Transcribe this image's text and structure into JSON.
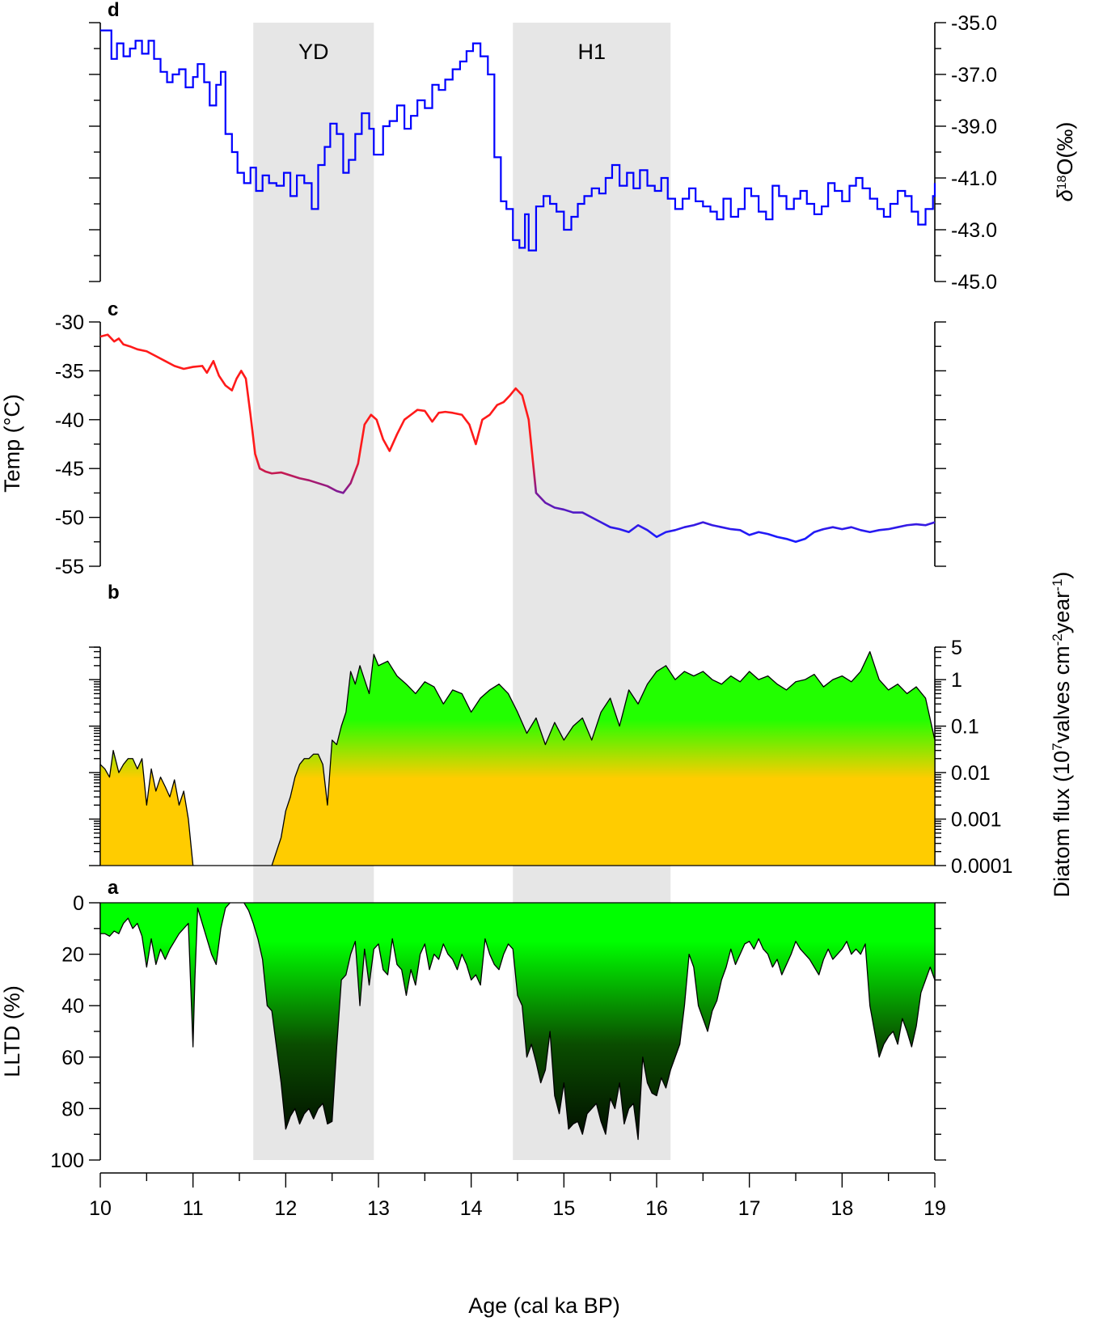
{
  "figure": {
    "x_axis": {
      "label": "Age (cal ka BP)",
      "range": [
        10,
        19
      ],
      "ticks": [
        10,
        11,
        12,
        13,
        14,
        15,
        16,
        17,
        18,
        19
      ],
      "tick_labels": [
        "10",
        "11",
        "12",
        "13",
        "14",
        "15",
        "16",
        "17",
        "18",
        "19"
      ]
    },
    "events": [
      {
        "label": "YD",
        "start": 11.65,
        "end": 12.95
      },
      {
        "label": "H1",
        "start": 14.45,
        "end": 16.15
      }
    ],
    "colors": {
      "shade": "#e6e6e6",
      "d18o_line": "#0000ff",
      "temp_warm": "#ff1a1a",
      "temp_mid": "#7a1a9a",
      "temp_cold": "#1a1aff",
      "flux_high": "#22ff00",
      "flux_low": "#ffcc00",
      "lltd_top": "#00ff00",
      "lltd_bottom": "#000000"
    }
  },
  "chart_data": [
    {
      "panel": "d",
      "type": "line",
      "step": true,
      "ylabel_prefix": "δ",
      "ylabel_sup": "18",
      "ylabel_suffix": "O(‰)",
      "y_axis_side": "right",
      "ylim": [
        -45,
        -35
      ],
      "y_ticks": [
        -35,
        -37,
        -39,
        -41,
        -43,
        -45
      ],
      "y_tick_labels": [
        "-35.0",
        "-37.0",
        "-39.0",
        "-41.0",
        "-43.0",
        "-45.0"
      ],
      "x": [
        10.0,
        10.12,
        10.18,
        10.25,
        10.32,
        10.38,
        10.45,
        10.52,
        10.58,
        10.65,
        10.72,
        10.78,
        10.85,
        10.92,
        11.0,
        11.05,
        11.12,
        11.18,
        11.25,
        11.3,
        11.35,
        11.42,
        11.48,
        11.55,
        11.62,
        11.68,
        11.75,
        11.82,
        11.9,
        11.98,
        12.05,
        12.12,
        12.2,
        12.28,
        12.35,
        12.42,
        12.48,
        12.55,
        12.62,
        12.68,
        12.75,
        12.82,
        12.9,
        12.95,
        13.05,
        13.12,
        13.2,
        13.28,
        13.35,
        13.42,
        13.5,
        13.58,
        13.65,
        13.72,
        13.8,
        13.88,
        13.95,
        14.02,
        14.1,
        14.18,
        14.25,
        14.32,
        14.38,
        14.45,
        14.52,
        14.58,
        14.62,
        14.7,
        14.78,
        14.85,
        14.92,
        15.0,
        15.08,
        15.15,
        15.22,
        15.3,
        15.38,
        15.45,
        15.52,
        15.6,
        15.68,
        15.75,
        15.82,
        15.9,
        15.98,
        16.05,
        16.12,
        16.2,
        16.28,
        16.35,
        16.42,
        16.5,
        16.58,
        16.65,
        16.72,
        16.8,
        16.88,
        16.95,
        17.02,
        17.1,
        17.18,
        17.25,
        17.32,
        17.4,
        17.48,
        17.55,
        17.62,
        17.7,
        17.78,
        17.85,
        17.92,
        18.0,
        18.08,
        18.15,
        18.22,
        18.3,
        18.38,
        18.45,
        18.52,
        18.6,
        18.68,
        18.75,
        18.82,
        18.9,
        18.98,
        19.0
      ],
      "y": [
        -35.3,
        -36.4,
        -35.8,
        -36.3,
        -36.0,
        -35.7,
        -36.2,
        -35.7,
        -36.4,
        -36.9,
        -37.3,
        -37.0,
        -36.8,
        -37.5,
        -37.1,
        -36.6,
        -37.3,
        -38.2,
        -37.4,
        -36.9,
        -39.3,
        -40.0,
        -40.8,
        -41.2,
        -40.6,
        -41.5,
        -40.9,
        -41.2,
        -41.3,
        -40.8,
        -41.7,
        -40.9,
        -41.2,
        -42.2,
        -40.5,
        -39.8,
        -38.9,
        -39.3,
        -40.8,
        -40.3,
        -39.3,
        -38.5,
        -39.1,
        -40.1,
        -39.0,
        -38.8,
        -38.2,
        -39.1,
        -38.6,
        -38.0,
        -38.3,
        -37.4,
        -37.6,
        -37.2,
        -36.8,
        -36.5,
        -36.1,
        -35.8,
        -36.3,
        -37.0,
        -40.2,
        -41.9,
        -42.2,
        -43.4,
        -43.7,
        -42.4,
        -43.8,
        -42.1,
        -41.7,
        -42.0,
        -42.3,
        -43.0,
        -42.5,
        -42.0,
        -41.7,
        -41.4,
        -41.6,
        -41.0,
        -40.5,
        -41.3,
        -40.8,
        -41.4,
        -40.7,
        -41.3,
        -41.5,
        -41.0,
        -41.8,
        -42.2,
        -41.8,
        -41.4,
        -41.9,
        -42.1,
        -42.3,
        -42.6,
        -41.8,
        -42.5,
        -42.2,
        -41.4,
        -41.7,
        -42.3,
        -42.6,
        -41.3,
        -41.7,
        -42.2,
        -41.8,
        -41.5,
        -42.0,
        -42.4,
        -42.1,
        -41.2,
        -41.5,
        -41.9,
        -41.3,
        -41.0,
        -41.4,
        -41.8,
        -42.2,
        -42.5,
        -42.0,
        -41.5,
        -41.7,
        -42.3,
        -42.8,
        -42.2,
        -41.7,
        -41.2
      ]
    },
    {
      "panel": "c",
      "type": "line",
      "ylabel": "Temp (°C)",
      "y_axis_side": "left",
      "ylim": [
        -55,
        -30
      ],
      "y_ticks": [
        -30,
        -35,
        -40,
        -45,
        -50,
        -55
      ],
      "y_tick_labels": [
        "-30",
        "-35",
        "-40",
        "-45",
        "-50",
        "-55"
      ],
      "x": [
        10.0,
        10.08,
        10.15,
        10.2,
        10.25,
        10.32,
        10.4,
        10.5,
        10.6,
        10.7,
        10.8,
        10.9,
        11.0,
        11.1,
        11.15,
        11.22,
        11.28,
        11.35,
        11.42,
        11.47,
        11.52,
        11.57,
        11.62,
        11.67,
        11.72,
        11.78,
        11.85,
        11.95,
        12.05,
        12.15,
        12.25,
        12.35,
        12.45,
        12.55,
        12.62,
        12.7,
        12.78,
        12.85,
        12.92,
        12.98,
        13.05,
        13.12,
        13.2,
        13.28,
        13.35,
        13.42,
        13.5,
        13.58,
        13.65,
        13.72,
        13.8,
        13.9,
        13.98,
        14.05,
        14.12,
        14.2,
        14.28,
        14.35,
        14.42,
        14.48,
        14.55,
        14.62,
        14.7,
        14.8,
        14.9,
        15.0,
        15.1,
        15.2,
        15.3,
        15.4,
        15.5,
        15.6,
        15.7,
        15.8,
        15.9,
        16.0,
        16.1,
        16.2,
        16.3,
        16.4,
        16.5,
        16.6,
        16.7,
        16.8,
        16.9,
        17.0,
        17.1,
        17.2,
        17.3,
        17.4,
        17.5,
        17.6,
        17.7,
        17.8,
        17.9,
        18.0,
        18.1,
        18.2,
        18.3,
        18.4,
        18.5,
        18.6,
        18.7,
        18.8,
        18.9,
        19.0
      ],
      "y": [
        -31.5,
        -31.3,
        -32.0,
        -31.7,
        -32.3,
        -32.5,
        -32.8,
        -33.0,
        -33.5,
        -34.0,
        -34.5,
        -34.8,
        -34.6,
        -34.5,
        -35.2,
        -34.0,
        -35.5,
        -36.5,
        -37.0,
        -35.8,
        -35.0,
        -35.8,
        -39.5,
        -43.5,
        -45.0,
        -45.3,
        -45.5,
        -45.4,
        -45.7,
        -46.0,
        -46.2,
        -46.5,
        -46.8,
        -47.3,
        -47.5,
        -46.5,
        -44.5,
        -40.5,
        -39.5,
        -40.0,
        -42.0,
        -43.2,
        -41.5,
        -40.0,
        -39.5,
        -39.0,
        -39.1,
        -40.2,
        -39.3,
        -39.2,
        -39.3,
        -39.5,
        -40.5,
        -42.5,
        -40.0,
        -39.5,
        -38.5,
        -38.2,
        -37.5,
        -36.8,
        -37.5,
        -40.0,
        -47.5,
        -48.5,
        -49.0,
        -49.2,
        -49.5,
        -49.5,
        -50.0,
        -50.5,
        -51.0,
        -51.2,
        -51.5,
        -50.8,
        -51.3,
        -52.0,
        -51.5,
        -51.3,
        -51.0,
        -50.8,
        -50.5,
        -50.8,
        -51.0,
        -51.2,
        -51.3,
        -51.8,
        -51.5,
        -51.7,
        -52.0,
        -52.2,
        -52.5,
        -52.2,
        -51.5,
        -51.2,
        -51.0,
        -51.2,
        -51.0,
        -51.3,
        -51.5,
        -51.3,
        -51.2,
        -51.0,
        -50.8,
        -50.7,
        -50.8,
        -50.5
      ]
    },
    {
      "panel": "b",
      "type": "area",
      "ylabel_prefix": "Diatom flux (10",
      "ylabel_sup": "7",
      "ylabel_mid": "valves cm",
      "ylabel_sup2": "-2",
      "ylabel_mid2": "year",
      "ylabel_sup3": "-1",
      "ylabel_end": ")",
      "y_axis_side": "right",
      "scale": "log",
      "ylim": [
        0.0001,
        5
      ],
      "y_ticks": [
        0.0001,
        0.001,
        0.01,
        0.1,
        1,
        5
      ],
      "y_tick_labels": [
        "0.0001",
        "0.001",
        "0.01",
        "0.1",
        "1",
        "5"
      ],
      "x": [
        10.0,
        10.05,
        10.1,
        10.14,
        10.2,
        10.25,
        10.3,
        10.35,
        10.4,
        10.45,
        10.5,
        10.55,
        10.6,
        10.65,
        10.7,
        10.75,
        10.8,
        10.85,
        10.9,
        10.95,
        11.0,
        11.05,
        11.85,
        11.9,
        11.95,
        12.0,
        12.05,
        12.1,
        12.15,
        12.2,
        12.25,
        12.3,
        12.35,
        12.4,
        12.45,
        12.5,
        12.55,
        12.6,
        12.65,
        12.7,
        12.75,
        12.8,
        12.85,
        12.9,
        12.95,
        13.0,
        13.1,
        13.2,
        13.3,
        13.4,
        13.5,
        13.6,
        13.7,
        13.8,
        13.9,
        14.0,
        14.1,
        14.2,
        14.3,
        14.4,
        14.5,
        14.6,
        14.7,
        14.8,
        14.9,
        15.0,
        15.1,
        15.2,
        15.3,
        15.4,
        15.5,
        15.6,
        15.7,
        15.8,
        15.9,
        16.0,
        16.1,
        16.2,
        16.3,
        16.4,
        16.5,
        16.6,
        16.7,
        16.8,
        16.9,
        17.0,
        17.1,
        17.2,
        17.3,
        17.4,
        17.5,
        17.6,
        17.7,
        17.8,
        17.9,
        18.0,
        18.1,
        18.2,
        18.3,
        18.4,
        18.5,
        18.6,
        18.7,
        18.8,
        18.9,
        19.0
      ],
      "y": [
        0.015,
        0.012,
        0.008,
        0.03,
        0.01,
        0.015,
        0.02,
        0.02,
        0.012,
        0.02,
        0.002,
        0.012,
        0.004,
        0.008,
        0.005,
        0.003,
        0.007,
        0.002,
        0.004,
        0.001,
        0.0001,
        0.0001,
        0.0001,
        0.0002,
        0.0004,
        0.0015,
        0.003,
        0.008,
        0.015,
        0.02,
        0.02,
        0.025,
        0.025,
        0.015,
        0.002,
        0.05,
        0.04,
        0.1,
        0.2,
        1.5,
        0.8,
        2.0,
        1.0,
        0.5,
        3.5,
        2.0,
        2.5,
        1.2,
        0.8,
        0.5,
        0.9,
        0.7,
        0.3,
        0.6,
        0.5,
        0.2,
        0.4,
        0.6,
        0.8,
        0.5,
        0.2,
        0.07,
        0.15,
        0.04,
        0.12,
        0.05,
        0.1,
        0.15,
        0.05,
        0.2,
        0.4,
        0.1,
        0.6,
        0.3,
        0.8,
        1.5,
        2.0,
        1.0,
        1.5,
        1.2,
        1.5,
        1.0,
        0.8,
        1.2,
        0.9,
        1.5,
        1.0,
        1.2,
        0.8,
        0.6,
        0.9,
        1.0,
        1.3,
        0.7,
        1.0,
        1.2,
        0.9,
        1.5,
        4.0,
        1.0,
        0.6,
        0.8,
        0.5,
        0.7,
        0.4,
        0.05
      ]
    },
    {
      "panel": "a",
      "type": "area",
      "ylabel": "LLTD (%)",
      "y_axis_side": "left",
      "inverted": true,
      "ylim": [
        0,
        100
      ],
      "y_ticks": [
        0,
        20,
        40,
        60,
        80,
        100
      ],
      "y_tick_labels": [
        "0",
        "20",
        "40",
        "60",
        "80",
        "100"
      ],
      "x": [
        10.0,
        10.05,
        10.1,
        10.15,
        10.2,
        10.25,
        10.3,
        10.35,
        10.4,
        10.45,
        10.5,
        10.55,
        10.6,
        10.65,
        10.7,
        10.75,
        10.8,
        10.85,
        10.9,
        10.95,
        11.0,
        11.02,
        11.05,
        11.1,
        11.15,
        11.2,
        11.25,
        11.3,
        11.35,
        11.4,
        11.45,
        11.5,
        11.55,
        11.6,
        11.65,
        11.7,
        11.75,
        11.8,
        11.85,
        11.9,
        11.95,
        12.0,
        12.05,
        12.1,
        12.15,
        12.2,
        12.25,
        12.3,
        12.35,
        12.4,
        12.45,
        12.5,
        12.55,
        12.6,
        12.65,
        12.7,
        12.75,
        12.8,
        12.85,
        12.9,
        12.95,
        13.0,
        13.05,
        13.1,
        13.15,
        13.2,
        13.25,
        13.3,
        13.35,
        13.4,
        13.45,
        13.5,
        13.55,
        13.6,
        13.65,
        13.7,
        13.75,
        13.8,
        13.85,
        13.9,
        13.95,
        14.0,
        14.05,
        14.1,
        14.15,
        14.2,
        14.25,
        14.3,
        14.35,
        14.4,
        14.45,
        14.5,
        14.55,
        14.6,
        14.65,
        14.7,
        14.75,
        14.8,
        14.85,
        14.9,
        14.95,
        15.0,
        15.05,
        15.1,
        15.15,
        15.2,
        15.25,
        15.3,
        15.35,
        15.4,
        15.45,
        15.5,
        15.55,
        15.6,
        15.65,
        15.7,
        15.75,
        15.8,
        15.85,
        15.9,
        15.95,
        16.0,
        16.05,
        16.1,
        16.15,
        16.2,
        16.25,
        16.3,
        16.35,
        16.4,
        16.45,
        16.5,
        16.55,
        16.6,
        16.65,
        16.7,
        16.75,
        16.8,
        16.85,
        16.9,
        16.95,
        17.0,
        17.05,
        17.1,
        17.15,
        17.2,
        17.25,
        17.3,
        17.35,
        17.4,
        17.45,
        17.5,
        17.55,
        17.6,
        17.65,
        17.7,
        17.75,
        17.8,
        17.85,
        17.9,
        17.95,
        18.0,
        18.05,
        18.1,
        18.15,
        18.2,
        18.25,
        18.3,
        18.35,
        18.4,
        18.45,
        18.5,
        18.55,
        18.6,
        18.65,
        18.7,
        18.75,
        18.8,
        18.85,
        18.9,
        18.95,
        19.0
      ],
      "y": [
        12,
        12,
        13,
        11,
        12,
        8,
        6,
        10,
        8,
        13,
        25,
        14,
        24,
        18,
        22,
        18,
        15,
        12,
        10,
        8,
        56,
        30,
        2,
        8,
        14,
        20,
        24,
        10,
        2,
        0,
        0,
        0,
        0,
        3,
        8,
        14,
        22,
        40,
        42,
        56,
        70,
        88,
        83,
        80,
        86,
        82,
        80,
        84,
        80,
        78,
        86,
        85,
        56,
        30,
        28,
        20,
        15,
        40,
        18,
        32,
        18,
        16,
        26,
        28,
        14,
        24,
        26,
        36,
        26,
        32,
        20,
        16,
        26,
        20,
        22,
        16,
        20,
        22,
        26,
        20,
        24,
        30,
        28,
        32,
        14,
        20,
        24,
        26,
        20,
        16,
        18,
        36,
        40,
        60,
        55,
        62,
        70,
        65,
        50,
        75,
        82,
        70,
        88,
        86,
        85,
        90,
        82,
        80,
        78,
        85,
        90,
        76,
        80,
        70,
        86,
        80,
        78,
        92,
        60,
        70,
        74,
        75,
        68,
        72,
        65,
        60,
        55,
        40,
        20,
        25,
        40,
        45,
        50,
        42,
        38,
        30,
        25,
        18,
        24,
        20,
        16,
        15,
        18,
        14,
        18,
        20,
        25,
        22,
        28,
        24,
        20,
        15,
        18,
        20,
        22,
        25,
        28,
        22,
        18,
        22,
        20,
        18,
        15,
        20,
        18,
        20,
        16,
        40,
        50,
        60,
        55,
        52,
        50,
        55,
        45,
        50,
        56,
        48,
        35,
        30,
        25,
        30
      ]
    }
  ]
}
